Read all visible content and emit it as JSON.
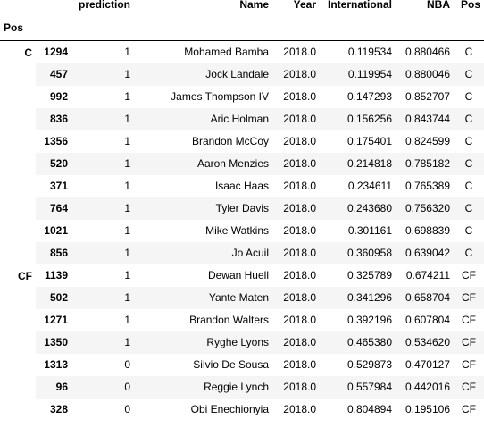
{
  "table": {
    "columns": [
      "prediction",
      "Name",
      "Year",
      "International",
      "NBA",
      "Pos"
    ],
    "index_name": "Pos",
    "groups": [
      {
        "label": "C",
        "rows": [
          [
            "1294",
            "1",
            "Mohamed Bamba",
            "2018.0",
            "0.119534",
            "0.880466",
            "C"
          ],
          [
            "457",
            "1",
            "Jock Landale",
            "2018.0",
            "0.119954",
            "0.880046",
            "C"
          ],
          [
            "992",
            "1",
            "James Thompson IV",
            "2018.0",
            "0.147293",
            "0.852707",
            "C"
          ],
          [
            "836",
            "1",
            "Aric Holman",
            "2018.0",
            "0.156256",
            "0.843744",
            "C"
          ],
          [
            "1356",
            "1",
            "Brandon McCoy",
            "2018.0",
            "0.175401",
            "0.824599",
            "C"
          ],
          [
            "520",
            "1",
            "Aaron Menzies",
            "2018.0",
            "0.214818",
            "0.785182",
            "C"
          ],
          [
            "371",
            "1",
            "Isaac Haas",
            "2018.0",
            "0.234611",
            "0.765389",
            "C"
          ],
          [
            "764",
            "1",
            "Tyler Davis",
            "2018.0",
            "0.243680",
            "0.756320",
            "C"
          ],
          [
            "1021",
            "1",
            "Mike Watkins",
            "2018.0",
            "0.301161",
            "0.698839",
            "C"
          ],
          [
            "856",
            "1",
            "Jo Acuil",
            "2018.0",
            "0.360958",
            "0.639042",
            "C"
          ]
        ]
      },
      {
        "label": "CF",
        "rows": [
          [
            "1139",
            "1",
            "Dewan Huell",
            "2018.0",
            "0.325789",
            "0.674211",
            "CF"
          ],
          [
            "502",
            "1",
            "Yante Maten",
            "2018.0",
            "0.341296",
            "0.658704",
            "CF"
          ],
          [
            "1271",
            "1",
            "Brandon Walters",
            "2018.0",
            "0.392196",
            "0.607804",
            "CF"
          ],
          [
            "1350",
            "1",
            "Ryghe Lyons",
            "2018.0",
            "0.465380",
            "0.534620",
            "CF"
          ],
          [
            "1313",
            "0",
            "Silvio De Sousa",
            "2018.0",
            "0.529873",
            "0.470127",
            "CF"
          ],
          [
            "96",
            "0",
            "Reggie Lynch",
            "2018.0",
            "0.557984",
            "0.442016",
            "CF"
          ],
          [
            "328",
            "0",
            "Obi Enechionyia",
            "2018.0",
            "0.804894",
            "0.195106",
            "CF"
          ]
        ]
      }
    ]
  }
}
